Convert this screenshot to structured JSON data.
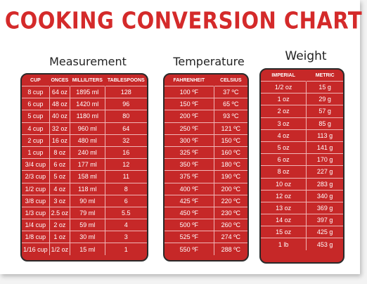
{
  "title": "COOKING CONVERSION CHART",
  "measurement": {
    "heading": "Measurement",
    "columns": [
      "CUP",
      "ONCES",
      "MILLILITERS",
      "TABLESPOONS"
    ],
    "rows": [
      [
        "8 cup",
        "64 oz",
        "1895 ml",
        "128"
      ],
      [
        "6 cup",
        "48 oz",
        "1420 ml",
        "96"
      ],
      [
        "5 cup",
        "40 oz",
        "1180 ml",
        "80"
      ],
      [
        "4 cup",
        "32 oz",
        "960 ml",
        "64"
      ],
      [
        "2 cup",
        "16 oz",
        "480 ml",
        "32"
      ],
      [
        "1 cup",
        "8 oz",
        "240 ml",
        "16"
      ],
      [
        "3/4 cup",
        "6 oz",
        "177 ml",
        "12"
      ],
      [
        "2/3 cup",
        "5 oz",
        "158 ml",
        "11"
      ],
      [
        "1/2 cup",
        "4 oz",
        "118 ml",
        "8"
      ],
      [
        "3/8 cup",
        "3 oz",
        "90 ml",
        "6"
      ],
      [
        "1/3 cup",
        "2.5 oz",
        "79 ml",
        "5.5"
      ],
      [
        "1/4 cup",
        "2 oz",
        "59 ml",
        "4"
      ],
      [
        "1/8 cup",
        "1 oz",
        "30 ml",
        "3"
      ],
      [
        "1/16 cup",
        "1/2 oz",
        "15 ml",
        "1"
      ]
    ]
  },
  "temperature": {
    "heading": "Temperature",
    "columns": [
      "FAHRENHEIT",
      "CELSIUS"
    ],
    "rows": [
      [
        "100 ºF",
        "37 ºC"
      ],
      [
        "150 ºF",
        "65 ºC"
      ],
      [
        "200 ºF",
        "93 ºC"
      ],
      [
        "250 ºF",
        "121 ºC"
      ],
      [
        "300 ºF",
        "150 ºC"
      ],
      [
        "325 ºF",
        "160 ºC"
      ],
      [
        "350 ºF",
        "180 ºC"
      ],
      [
        "375 ºF",
        "190 ºC"
      ],
      [
        "400 ºF",
        "200 ºC"
      ],
      [
        "425 ºF",
        "220 ºC"
      ],
      [
        "450 ºF",
        "230 ºC"
      ],
      [
        "500 ºF",
        "260 ºC"
      ],
      [
        "525 ºF",
        "274 ºC"
      ],
      [
        "550 ºF",
        "288 ºC"
      ]
    ]
  },
  "weight": {
    "heading": "Weight",
    "columns": [
      "IMPERIAL",
      "METRIC"
    ],
    "rows": [
      [
        "1/2 oz",
        "15 g"
      ],
      [
        "1 oz",
        "29 g"
      ],
      [
        "2 oz",
        "57 g"
      ],
      [
        "3 oz",
        "85 g"
      ],
      [
        "4 oz",
        "113 g"
      ],
      [
        "5 oz",
        "141 g"
      ],
      [
        "6 oz",
        "170 g"
      ],
      [
        "8 oz",
        "227 g"
      ],
      [
        "10 oz",
        "283 g"
      ],
      [
        "12 oz",
        "340 g"
      ],
      [
        "13 oz",
        "369 g"
      ],
      [
        "14 oz",
        "397 g"
      ],
      [
        "15 oz",
        "425 g"
      ],
      [
        "1 lb",
        "453 g"
      ]
    ]
  }
}
